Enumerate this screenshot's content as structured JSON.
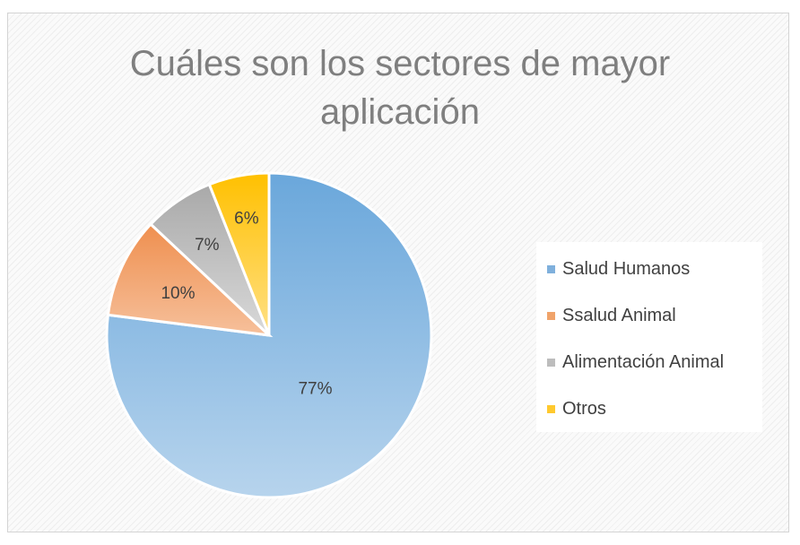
{
  "chart_data": {
    "type": "pie",
    "title": "Cuáles son los sectores de mayor aplicación",
    "title_lines": [
      "Cuáles son los sectores de mayor",
      "aplicación"
    ],
    "categories": [
      "Salud Humanos",
      "Ssalud Animal",
      "Alimentación Animal",
      "Otros"
    ],
    "values": [
      77,
      10,
      7,
      6
    ],
    "data_labels": [
      "77%",
      "10%",
      "7%",
      "6%"
    ],
    "colors": [
      "#7fb0dc",
      "#f0a36a",
      "#bdbdbd",
      "#ffc92e"
    ],
    "legend_position": "right"
  }
}
